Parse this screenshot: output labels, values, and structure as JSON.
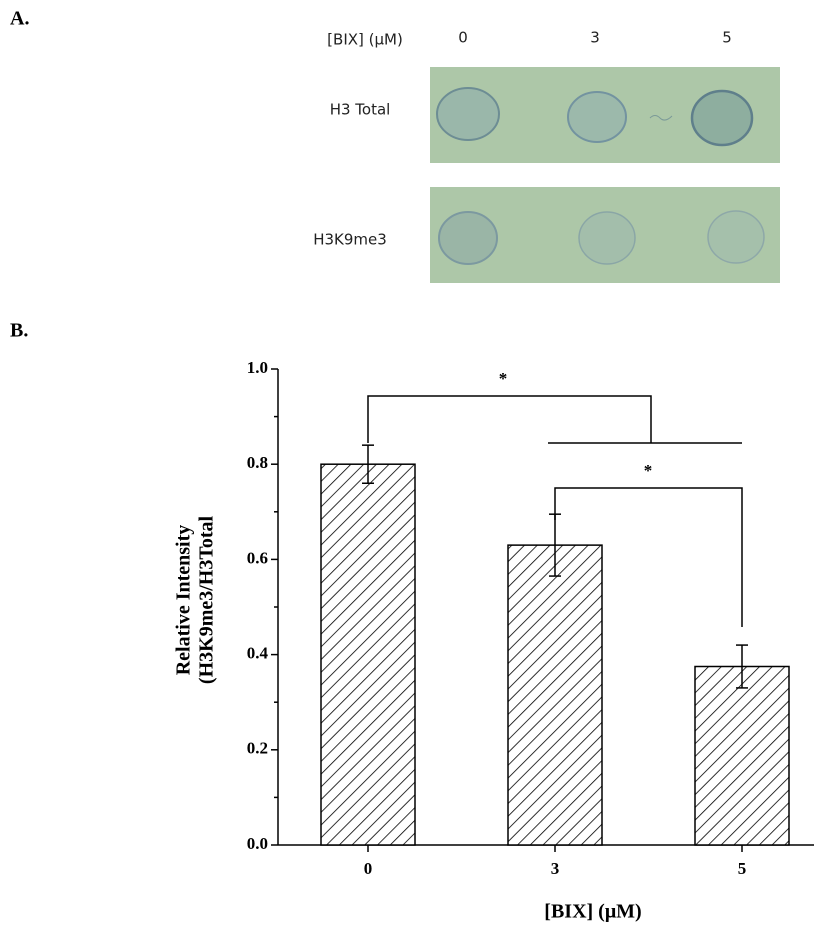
{
  "panel_a": {
    "label": "A.",
    "header": "[BIX] (μM)",
    "columns": [
      "0",
      "3",
      "5"
    ],
    "rows": [
      "H3 Total",
      "H3K9me3"
    ]
  },
  "chart_data": {
    "type": "bar",
    "panel_label": "B.",
    "ylabel": [
      "Relative Intensity",
      "(H3K9me3/H3Total"
    ],
    "xlabel": "[BIX] (μM)",
    "categories": [
      "0",
      "3",
      "5"
    ],
    "values": [
      0.8,
      0.63,
      0.375
    ],
    "errors": [
      0.04,
      0.065,
      0.045
    ],
    "color": "#000000",
    "ylim": [
      0,
      1
    ],
    "yticks": [
      {
        "value": 0,
        "label": "0.0"
      },
      0.2,
      0.4,
      0.6,
      0.8,
      {
        "value": 1,
        "label": "1.0"
      }
    ],
    "yminorticks": [
      0.1,
      0.3,
      0.5,
      0.7,
      0.9
    ],
    "annotations": [
      "*",
      "*"
    ]
  }
}
